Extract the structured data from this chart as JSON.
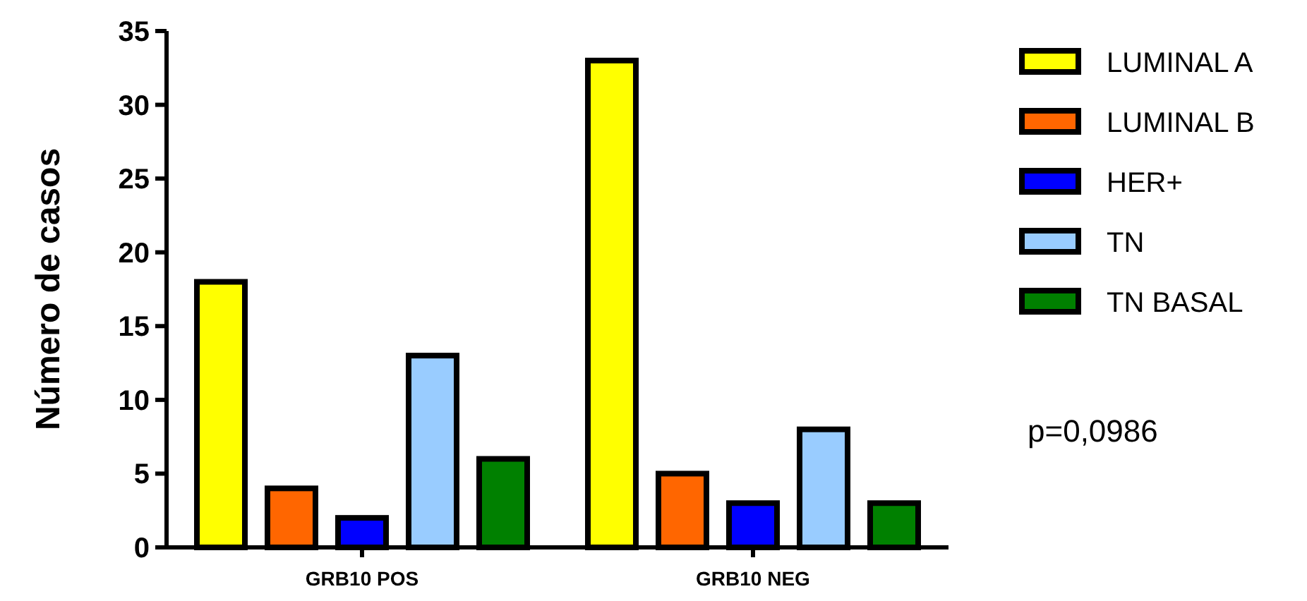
{
  "chart_data": {
    "type": "bar",
    "ylabel": "Número de casos",
    "categories": [
      "GRB10 POS",
      "GRB10 NEG"
    ],
    "series": [
      {
        "name": "LUMINAL A",
        "color": "#ffff00",
        "values": [
          18,
          33
        ]
      },
      {
        "name": "LUMINAL B",
        "color": "#ff6600",
        "values": [
          4,
          5
        ]
      },
      {
        "name": "HER+",
        "color": "#0000ff",
        "values": [
          2,
          3
        ]
      },
      {
        "name": "TN",
        "color": "#99ccff",
        "values": [
          13,
          8
        ]
      },
      {
        "name": "TN BASAL",
        "color": "#008000",
        "values": [
          6,
          3
        ]
      }
    ],
    "ylim": [
      0,
      35
    ],
    "yticks": [
      0,
      5,
      10,
      15,
      20,
      25,
      30,
      35
    ],
    "legend": "right",
    "grid": false,
    "annotations": [
      "p=0,0986"
    ]
  }
}
